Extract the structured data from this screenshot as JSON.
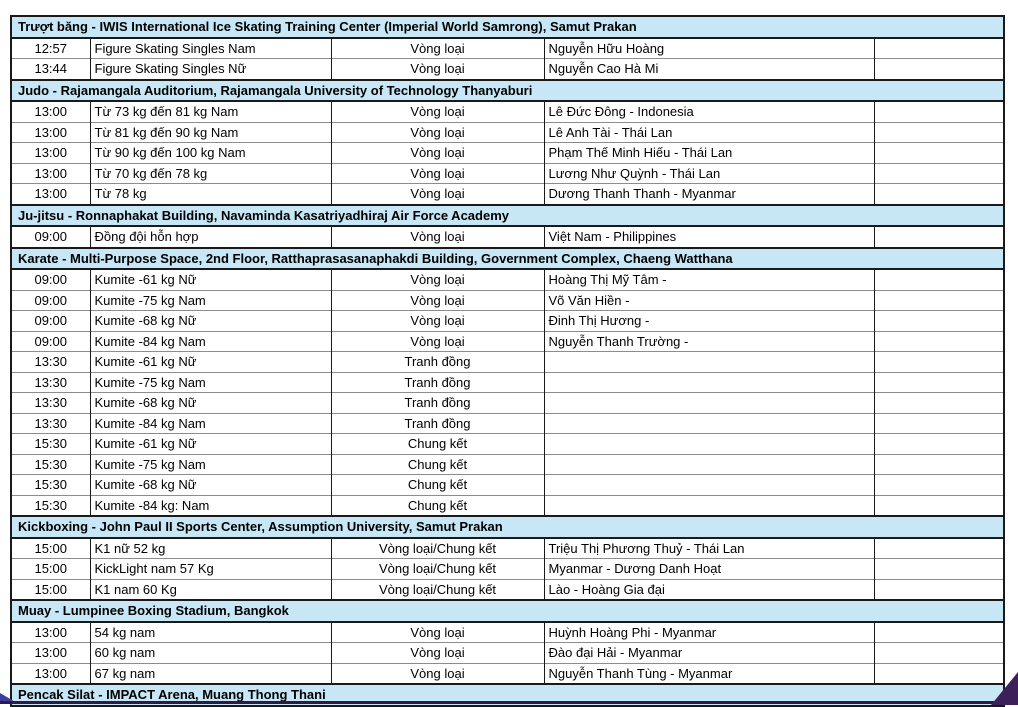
{
  "colors": {
    "section_header_bg": "#c7e7f7",
    "border_dark": "#1a1a1a",
    "border_light": "#8c8c8c",
    "bottom_ribbon_purple": "#2d1a47",
    "corner_wedge_purple": "#3d2059",
    "swoosh_blue": "#3b3f9e",
    "text": "#000000"
  },
  "decorations": {
    "bottom_ribbon": "purple-ribbon-line",
    "bottom_right": "purple-corner-wedge",
    "bottom_left": "blue-swoosh-fragment"
  },
  "table": {
    "column_keys": [
      "time",
      "event",
      "round",
      "athletes",
      "note"
    ],
    "sections": [
      {
        "header": "Trượt băng - IWIS International Ice Skating Training Center (Imperial World Samrong), Samut Prakan",
        "rows": [
          {
            "time": "12:57",
            "event": "Figure Skating Singles Nam",
            "round": "Vòng loại",
            "athletes": "Nguyễn Hữu Hoàng",
            "note": ""
          },
          {
            "time": "13:44",
            "event": "Figure Skating Singles Nữ",
            "round": "Vòng loại",
            "athletes": "Nguyễn Cao Hà Mi",
            "note": ""
          }
        ]
      },
      {
        "header": "Judo - Rajamangala Auditorium, Rajamangala University of Technology Thanyaburi",
        "rows": [
          {
            "time": "13:00",
            "event": "Từ 73 kg đến 81 kg Nam",
            "round": "Vòng loại",
            "athletes": "Lê Đức Đông - Indonesia",
            "note": ""
          },
          {
            "time": "13:00",
            "event": "Từ 81 kg đến 90 kg Nam",
            "round": "Vòng loại",
            "athletes": "Lê Anh Tài - Thái Lan",
            "note": ""
          },
          {
            "time": "13:00",
            "event": "Từ 90 kg đến 100 kg Nam",
            "round": "Vòng loại",
            "athletes": "Phạm Thế Minh Hiếu - Thái Lan",
            "note": ""
          },
          {
            "time": "13:00",
            "event": "Từ 70 kg đến 78 kg",
            "round": "Vòng loại",
            "athletes": "Lương Như Quỳnh - Thái Lan",
            "note": ""
          },
          {
            "time": "13:00",
            "event": "Từ 78 kg",
            "round": "Vòng loại",
            "athletes": "Dương Thanh Thanh - Myanmar",
            "note": ""
          }
        ]
      },
      {
        "header": "Ju-jitsu - Ronnaphakat Building, Navaminda Kasatriyadhiraj Air Force Academy",
        "rows": [
          {
            "time": "09:00",
            "event": "Đồng đội hỗn hợp",
            "round": "Vòng loại",
            "athletes": "Việt Nam - Philippines",
            "note": ""
          }
        ]
      },
      {
        "header": "Karate - Multi-Purpose Space, 2nd Floor, Ratthaprasasanaphakdi Building, Government Complex, Chaeng Watthana",
        "rows": [
          {
            "time": "09:00",
            "event": "Kumite -61 kg Nữ",
            "round": "Vòng loại",
            "athletes": "Hoàng Thị Mỹ Tâm -",
            "note": ""
          },
          {
            "time": "09:00",
            "event": "Kumite -75 kg Nam",
            "round": "Vòng loại",
            "athletes": "Võ Văn Hiền -",
            "note": ""
          },
          {
            "time": "09:00",
            "event": "Kumite -68 kg Nữ",
            "round": "Vòng loại",
            "athletes": "Đinh Thị Hương -",
            "note": ""
          },
          {
            "time": "09:00",
            "event": "Kumite -84 kg Nam",
            "round": "Vòng loại",
            "athletes": "Nguyễn Thanh Trường -",
            "note": ""
          },
          {
            "time": "13:30",
            "event": "Kumite -61 kg Nữ",
            "round": "Tranh đồng",
            "athletes": "",
            "note": ""
          },
          {
            "time": "13:30",
            "event": "Kumite -75 kg Nam",
            "round": "Tranh đồng",
            "athletes": "",
            "note": ""
          },
          {
            "time": "13:30",
            "event": "Kumite -68 kg Nữ",
            "round": "Tranh đồng",
            "athletes": "",
            "note": ""
          },
          {
            "time": "13:30",
            "event": "Kumite -84 kg Nam",
            "round": "Tranh đồng",
            "athletes": "",
            "note": ""
          },
          {
            "time": "15:30",
            "event": "Kumite -61 kg Nữ",
            "round": "Chung kết",
            "athletes": "",
            "note": ""
          },
          {
            "time": "15:30",
            "event": "Kumite -75 kg Nam",
            "round": "Chung kết",
            "athletes": "",
            "note": ""
          },
          {
            "time": "15:30",
            "event": "Kumite -68 kg Nữ",
            "round": "Chung kết",
            "athletes": "",
            "note": ""
          },
          {
            "time": "15:30",
            "event": "Kumite -84 kg: Nam",
            "round": "Chung kết",
            "athletes": "",
            "note": ""
          }
        ]
      },
      {
        "header": "Kickboxing - John Paul II Sports Center, Assumption University, Samut Prakan",
        "rows": [
          {
            "time": "15:00",
            "event": "K1 nữ 52 kg",
            "round": "Vòng loại/Chung kết",
            "athletes": "Triệu Thị Phương Thuỷ - Thái Lan",
            "note": ""
          },
          {
            "time": "15:00",
            "event": "KickLight nam 57 Kg",
            "round": "Vòng loại/Chung kết",
            "athletes": "Myanmar - Dương Danh Hoạt",
            "note": ""
          },
          {
            "time": "15:00",
            "event": "K1 nam 60 Kg",
            "round": "Vòng loại/Chung kết",
            "athletes": "Lào - Hoàng Gia đại",
            "note": ""
          }
        ]
      },
      {
        "header": "Muay - Lumpinee Boxing Stadium, Bangkok",
        "rows": [
          {
            "time": "13:00",
            "event": "54 kg nam",
            "round": "Vòng loại",
            "athletes": "Huỳnh Hoàng Phi - Myanmar",
            "note": ""
          },
          {
            "time": "13:00",
            "event": "60 kg nam",
            "round": "Vòng loại",
            "athletes": "Đào đại Hải - Myanmar",
            "note": ""
          },
          {
            "time": "13:00",
            "event": "67 kg nam",
            "round": "Vòng loại",
            "athletes": "Nguyễn Thanh Tùng - Myanmar",
            "note": ""
          }
        ]
      },
      {
        "header": "Pencak Silat - IMPACT Arena, Muang Thong Thani",
        "rows": []
      }
    ]
  }
}
